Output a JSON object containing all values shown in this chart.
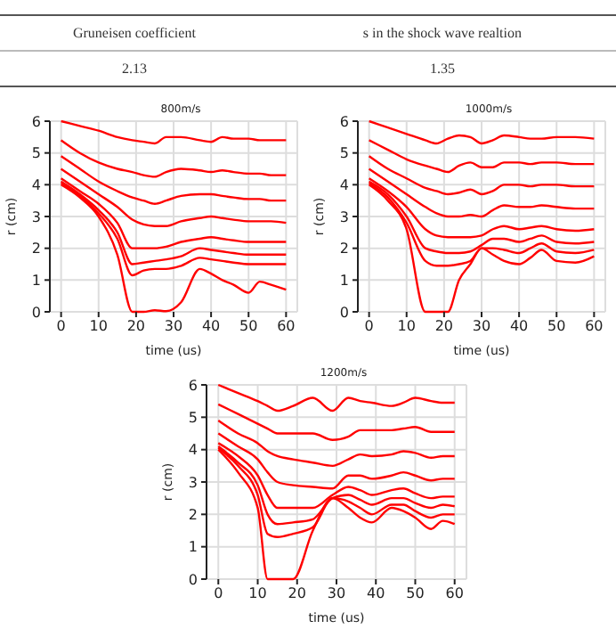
{
  "chart_data": [
    {
      "type": "other",
      "categories": [
        "Gruneisen coefficient",
        "s in the shock wave realtion"
      ],
      "values": [
        2.13,
        1.35
      ],
      "data_labels": true
    },
    {
      "type": "line",
      "title": "800m/s",
      "xlabel": "time (us)",
      "ylabel": "r (cm)",
      "xlim": [
        -3,
        63
      ],
      "xticks": [
        0,
        10,
        20,
        30,
        40,
        50,
        60
      ],
      "ylim": [
        0,
        6
      ],
      "yticks": [
        0,
        1,
        2,
        3,
        4,
        5,
        6
      ],
      "grid": true,
      "x": [
        0,
        5,
        10,
        15,
        19,
        22,
        25,
        28,
        32,
        37,
        40,
        43,
        46,
        50,
        53,
        56,
        60
      ],
      "series": [
        {
          "color": "#ff0000",
          "values": [
            4,
            3.6,
            3.0,
            1.8,
            0,
            0,
            0.05,
            0.02,
            0.3,
            1.35,
            1.2,
            1.0,
            0.85,
            0.6,
            0.95,
            0.85,
            0.7
          ]
        },
        {
          "color": "#ff0000",
          "values": [
            4.05,
            3.65,
            3.1,
            2.3,
            1.15,
            1.3,
            1.35,
            1.35,
            1.45,
            1.7,
            1.65,
            1.6,
            1.55,
            1.5,
            1.5,
            1.5,
            1.5
          ]
        },
        {
          "color": "#ff0000",
          "values": [
            4.1,
            3.7,
            3.2,
            2.5,
            1.5,
            1.55,
            1.6,
            1.65,
            1.75,
            2.0,
            1.95,
            1.9,
            1.85,
            1.8,
            1.8,
            1.8,
            1.8
          ]
        },
        {
          "color": "#ff0000",
          "values": [
            4.2,
            3.8,
            3.4,
            2.8,
            2.0,
            2.0,
            2.0,
            2.05,
            2.2,
            2.3,
            2.35,
            2.3,
            2.25,
            2.2,
            2.2,
            2.2,
            2.2
          ]
        },
        {
          "color": "#ff0000",
          "values": [
            4.5,
            4.1,
            3.7,
            3.3,
            2.9,
            2.75,
            2.7,
            2.7,
            2.85,
            2.95,
            3.0,
            2.95,
            2.9,
            2.85,
            2.85,
            2.85,
            2.8
          ]
        },
        {
          "color": "#ff0000",
          "values": [
            4.9,
            4.5,
            4.1,
            3.8,
            3.6,
            3.5,
            3.4,
            3.5,
            3.65,
            3.7,
            3.7,
            3.65,
            3.6,
            3.55,
            3.55,
            3.5,
            3.5
          ]
        },
        {
          "color": "#ff0000",
          "values": [
            5.4,
            5.0,
            4.7,
            4.5,
            4.4,
            4.3,
            4.25,
            4.4,
            4.5,
            4.45,
            4.4,
            4.45,
            4.4,
            4.35,
            4.35,
            4.3,
            4.3
          ]
        },
        {
          "color": "#ff0000",
          "values": [
            6,
            5.85,
            5.7,
            5.5,
            5.4,
            5.35,
            5.3,
            5.5,
            5.5,
            5.4,
            5.35,
            5.5,
            5.45,
            5.45,
            5.4,
            5.4,
            5.4
          ]
        }
      ]
    },
    {
      "type": "line",
      "title": "1000m/s",
      "xlabel": "time (us)",
      "ylabel": "r (cm)",
      "xlim": [
        -3,
        63
      ],
      "xticks": [
        0,
        10,
        20,
        30,
        40,
        50,
        60
      ],
      "ylim": [
        0,
        6
      ],
      "yticks": [
        0,
        1,
        2,
        3,
        4,
        5,
        6
      ],
      "grid": true,
      "x": [
        0,
        5,
        10,
        15,
        18,
        21,
        24,
        27,
        30,
        33,
        36,
        40,
        43,
        46,
        50,
        55,
        60
      ],
      "series": [
        {
          "color": "#ff0000",
          "values": [
            4,
            3.5,
            2.6,
            0,
            0,
            0,
            1,
            1.5,
            2.0,
            1.8,
            1.6,
            1.5,
            1.7,
            1.95,
            1.6,
            1.55,
            1.75
          ]
        },
        {
          "color": "#ff0000",
          "values": [
            4.05,
            3.6,
            2.8,
            1.6,
            1.45,
            1.45,
            1.5,
            1.6,
            2.0,
            2.0,
            1.95,
            1.85,
            2.0,
            2.15,
            1.9,
            1.85,
            1.95
          ]
        },
        {
          "color": "#ff0000",
          "values": [
            4.1,
            3.7,
            3.0,
            2.0,
            1.9,
            1.85,
            1.85,
            1.9,
            2.1,
            2.3,
            2.3,
            2.2,
            2.3,
            2.4,
            2.2,
            2.15,
            2.2
          ]
        },
        {
          "color": "#ff0000",
          "values": [
            4.2,
            3.8,
            3.3,
            2.6,
            2.4,
            2.35,
            2.35,
            2.35,
            2.4,
            2.6,
            2.7,
            2.6,
            2.65,
            2.7,
            2.6,
            2.55,
            2.6
          ]
        },
        {
          "color": "#ff0000",
          "values": [
            4.5,
            4.1,
            3.7,
            3.3,
            3.1,
            3.0,
            3.0,
            3.05,
            3.0,
            3.2,
            3.35,
            3.3,
            3.3,
            3.35,
            3.3,
            3.25,
            3.25
          ]
        },
        {
          "color": "#ff0000",
          "values": [
            4.9,
            4.5,
            4.2,
            3.9,
            3.8,
            3.7,
            3.75,
            3.85,
            3.7,
            3.8,
            4.0,
            4.0,
            3.95,
            4.0,
            4.0,
            3.95,
            3.95
          ]
        },
        {
          "color": "#ff0000",
          "values": [
            5.4,
            5.1,
            4.8,
            4.6,
            4.5,
            4.4,
            4.6,
            4.7,
            4.55,
            4.55,
            4.7,
            4.7,
            4.65,
            4.7,
            4.7,
            4.65,
            4.65
          ]
        },
        {
          "color": "#ff0000",
          "values": [
            6,
            5.8,
            5.6,
            5.4,
            5.3,
            5.45,
            5.55,
            5.5,
            5.3,
            5.4,
            5.55,
            5.5,
            5.45,
            5.45,
            5.5,
            5.5,
            5.45
          ]
        }
      ]
    },
    {
      "type": "line",
      "title": "1200m/s",
      "xlabel": "time (us)",
      "ylabel": "r (cm)",
      "xlim": [
        -3,
        63
      ],
      "xticks": [
        0,
        10,
        20,
        30,
        40,
        50,
        60
      ],
      "ylim": [
        0,
        6
      ],
      "yticks": [
        0,
        1,
        2,
        3,
        4,
        5,
        6
      ],
      "grid": true,
      "x": [
        0,
        5,
        10,
        12.5,
        15,
        19,
        24,
        29,
        33,
        36,
        39,
        44,
        47,
        50,
        54,
        57,
        60
      ],
      "series": [
        {
          "color": "#ff0000",
          "values": [
            4,
            3.3,
            2.2,
            0,
            0,
            0,
            1.5,
            2.5,
            2.2,
            1.9,
            1.75,
            2.2,
            2.1,
            1.9,
            1.55,
            1.8,
            1.7
          ]
        },
        {
          "color": "#ff0000",
          "values": [
            4.05,
            3.5,
            2.6,
            1.4,
            1.3,
            1.4,
            1.6,
            2.5,
            2.4,
            2.2,
            2.0,
            2.3,
            2.3,
            2.1,
            1.9,
            2.0,
            2.0
          ]
        },
        {
          "color": "#ff0000",
          "values": [
            4.1,
            3.6,
            2.9,
            2.0,
            1.7,
            1.75,
            1.85,
            2.5,
            2.6,
            2.45,
            2.3,
            2.5,
            2.5,
            2.35,
            2.2,
            2.3,
            2.25
          ]
        },
        {
          "color": "#ff0000",
          "values": [
            4.2,
            3.8,
            3.2,
            2.6,
            2.2,
            2.2,
            2.2,
            2.6,
            2.85,
            2.75,
            2.6,
            2.75,
            2.8,
            2.65,
            2.5,
            2.55,
            2.55
          ]
        },
        {
          "color": "#ff0000",
          "values": [
            4.5,
            4.1,
            3.7,
            3.3,
            3.0,
            2.9,
            2.85,
            2.8,
            3.2,
            3.2,
            3.1,
            3.2,
            3.3,
            3.2,
            3.05,
            3.1,
            3.1
          ]
        },
        {
          "color": "#ff0000",
          "values": [
            4.9,
            4.5,
            4.2,
            3.95,
            3.8,
            3.7,
            3.6,
            3.5,
            3.7,
            3.85,
            3.8,
            3.85,
            3.95,
            3.9,
            3.75,
            3.8,
            3.8
          ]
        },
        {
          "color": "#ff0000",
          "values": [
            5.4,
            5.1,
            4.8,
            4.65,
            4.5,
            4.5,
            4.5,
            4.3,
            4.4,
            4.6,
            4.6,
            4.6,
            4.65,
            4.7,
            4.55,
            4.55,
            4.55
          ]
        },
        {
          "color": "#ff0000",
          "values": [
            6,
            5.75,
            5.5,
            5.35,
            5.2,
            5.35,
            5.6,
            5.2,
            5.6,
            5.5,
            5.45,
            5.35,
            5.45,
            5.6,
            5.5,
            5.45,
            5.45
          ]
        }
      ]
    }
  ]
}
